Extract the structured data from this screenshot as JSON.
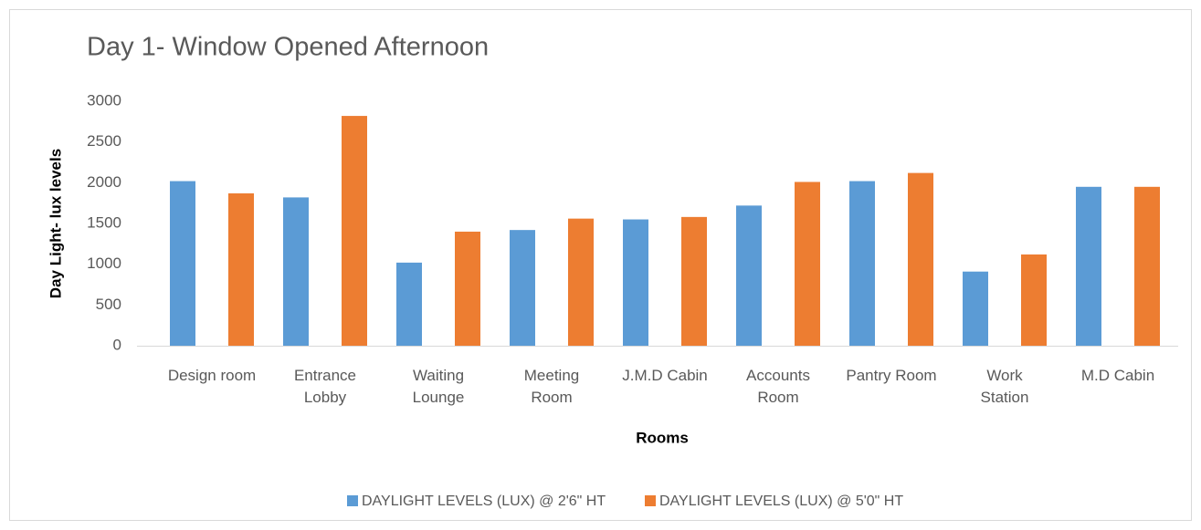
{
  "chart_data": {
    "type": "bar",
    "title": "Day 1- Window Opened Afternoon",
    "x_label": "Rooms",
    "y_label": "Day Light- lux levels",
    "categories": [
      "Design room",
      "Entrance\nLobby",
      "Waiting\nLounge",
      "Meeting\nRoom",
      "J.M.D Cabin",
      "Accounts\nRoom",
      "Pantry Room",
      "Work\nStation",
      "M.D Cabin"
    ],
    "series": [
      {
        "name": "DAYLIGHT LEVELS (LUX) @ 2'6\" HT",
        "color": "#5b9bd5",
        "values": [
          2020,
          1820,
          1020,
          1420,
          1550,
          1720,
          2020,
          910,
          1950
        ]
      },
      {
        "name": "DAYLIGHT LEVELS (LUX) @ 5'0\" HT",
        "color": "#ed7d31",
        "values": [
          1870,
          2820,
          1400,
          1560,
          1580,
          2010,
          2120,
          1120,
          1950
        ]
      }
    ],
    "ylim": [
      0,
      3000
    ],
    "yticks": [
      0,
      500,
      1000,
      1500,
      2000,
      2500,
      3000
    ],
    "grid": false,
    "legend": "bottom"
  }
}
